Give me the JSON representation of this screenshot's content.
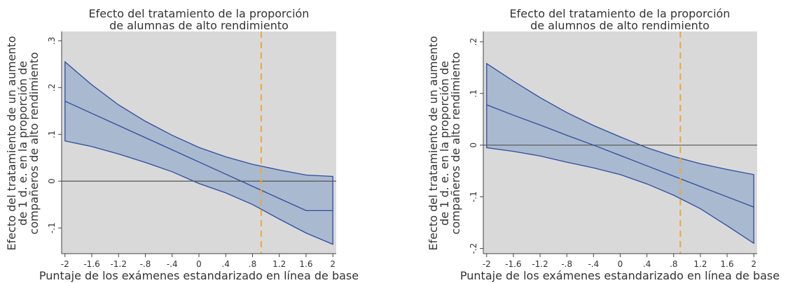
{
  "chart_data": [
    {
      "type": "line",
      "title_lines": [
        "Efecto del tratamiento de la proporción",
        "de alumnas de alto rendimiento"
      ],
      "ylabel_lines": [
        "Efecto del tratamiento de un aumento",
        "de 1 d. e. en la proporción de",
        "compañeros de alto rendimiento"
      ],
      "xlabel": "Puntaje de los exámenes estandarizado en línea de base",
      "xlim": [
        -2.05,
        2.05
      ],
      "ylim": [
        -0.155,
        0.32
      ],
      "xticks": [
        -2,
        -1.6,
        -1.2,
        -0.8,
        -0.4,
        0,
        0.4,
        0.8,
        1.2,
        1.6,
        2
      ],
      "xtick_labels": [
        "-2",
        "-1.6",
        "-1.2",
        "-.8",
        "-.4",
        "0",
        ".4",
        ".8",
        "1.2",
        "1.6",
        "2"
      ],
      "yticks": [
        -0.1,
        0,
        0.1,
        0.2,
        0.3
      ],
      "ytick_labels": [
        "-.1",
        "0",
        ".1",
        ".2",
        ".3"
      ],
      "reference_hline": 0,
      "reference_vline": 0.93,
      "x": [
        -2,
        -1.6,
        -1.2,
        -0.8,
        -0.4,
        0,
        0.4,
        0.8,
        1.2,
        1.6,
        2
      ],
      "estimate": [
        0.171,
        0.145,
        0.119,
        0.093,
        0.067,
        0.041,
        0.015,
        -0.011,
        -0.037,
        -0.063,
        -0.063
      ],
      "upper": [
        0.255,
        0.206,
        0.163,
        0.128,
        0.098,
        0.072,
        0.052,
        0.036,
        0.024,
        0.013,
        0.01
      ],
      "lower": [
        0.086,
        0.074,
        0.058,
        0.04,
        0.02,
        -0.005,
        -0.025,
        -0.05,
        -0.081,
        -0.111,
        -0.135
      ],
      "colors": {
        "band": "#a9b9cf",
        "line": "#2e4c9e",
        "vline": "#f0a830",
        "hline": "#555555",
        "plot_bg": "#d9d9d9"
      }
    },
    {
      "type": "line",
      "title_lines": [
        "Efecto del tratamiento de la proporción",
        "de alumnos de alto rendimiento"
      ],
      "ylabel_lines": [
        "Efecto del tratamiento de un aumento",
        "de 1 d. e. en la proporción de",
        "compañeros de alto rendimiento"
      ],
      "xlabel": "Puntaje de los exámenes estandarizado en línea de base",
      "xlim": [
        -2.05,
        2.05
      ],
      "ylim": [
        -0.21,
        0.22
      ],
      "xticks": [
        -2,
        -1.6,
        -1.2,
        -0.8,
        -0.4,
        0,
        0.4,
        0.8,
        1.2,
        1.6,
        2
      ],
      "xtick_labels": [
        "-2",
        "-1.6",
        "-1.2",
        "-.8",
        "-.4",
        "0",
        ".4",
        ".8",
        "1.2",
        "1.6",
        "2"
      ],
      "yticks": [
        -0.2,
        -0.1,
        0,
        0.1,
        0.2
      ],
      "ytick_labels": [
        "-.2",
        "-.1",
        "0",
        ".1",
        ".2"
      ],
      "reference_hline": 0,
      "reference_vline": 0.9,
      "x": [
        -2,
        -1.6,
        -1.2,
        -0.8,
        -0.4,
        0,
        0.4,
        0.8,
        1.2,
        1.6,
        2
      ],
      "estimate": [
        0.078,
        0.058,
        0.039,
        0.019,
        0.0,
        -0.02,
        -0.04,
        -0.06,
        -0.08,
        -0.1,
        -0.12
      ],
      "upper": [
        0.158,
        0.124,
        0.092,
        0.063,
        0.038,
        0.016,
        -0.005,
        -0.022,
        -0.036,
        -0.047,
        -0.057
      ],
      "lower": [
        -0.005,
        -0.012,
        -0.021,
        -0.033,
        -0.044,
        -0.057,
        -0.075,
        -0.097,
        -0.123,
        -0.156,
        -0.19
      ],
      "colors": {
        "band": "#a9b9cf",
        "line": "#2e4c9e",
        "vline": "#f0a830",
        "hline": "#555555",
        "plot_bg": "#d9d9d9"
      }
    }
  ]
}
